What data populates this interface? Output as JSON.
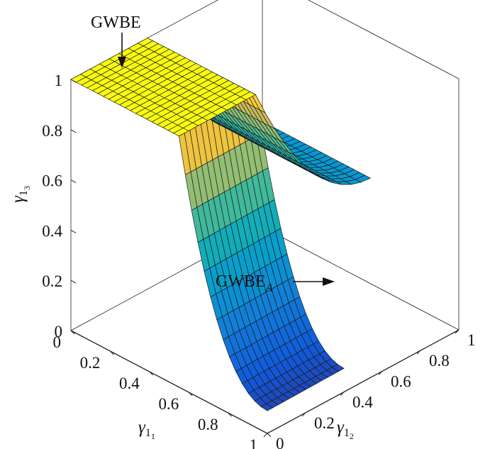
{
  "chart_data": {
    "type": "surface",
    "title": "",
    "annotations": {
      "upper": "GWBE",
      "lower_main": "GWBE",
      "lower_sub": "A"
    },
    "axes": {
      "x": {
        "symbol": "γ",
        "sub": "1",
        "subsub": "1",
        "range": [
          0,
          1
        ],
        "ticks": [
          0,
          0.2,
          0.4,
          0.6,
          0.8,
          1
        ],
        "tick_labels": [
          "0",
          "0.2",
          "0.4",
          "0.6",
          "0.8",
          "1"
        ]
      },
      "y": {
        "symbol": "γ",
        "sub": "1",
        "subsub": "2",
        "range": [
          0,
          1
        ],
        "ticks": [
          0,
          0.2,
          0.4,
          0.6,
          0.8,
          1
        ],
        "tick_labels": [
          "0",
          "0.2",
          "0.4",
          "0.6",
          "0.8",
          "1"
        ]
      },
      "z": {
        "symbol": "γ",
        "sub": "1",
        "subsub": "3",
        "range": [
          0,
          1
        ],
        "ticks": [
          0,
          0.2,
          0.4,
          0.6,
          0.8,
          1
        ],
        "tick_labels": [
          "0",
          "0.2",
          "0.4",
          "0.6",
          "0.8",
          "1"
        ]
      }
    },
    "series": [
      {
        "surface": "GWBE",
        "description_values": "plateau at 1 for gamma_1_2 <= 0.4, then decays to about 0.42 at gamma_1_2 = 1",
        "plateau_edge": 0.4,
        "end_value": 0.42
      },
      {
        "surface": "GWBE_A",
        "description_values": "plateau at 1 for gamma_1_1 <= 0.55, then decays toward 0.1 at gamma_1_1 = 1",
        "plateau_edge": 0.55,
        "end_value": 0.1
      }
    ],
    "colormap": "parula",
    "grid": false
  }
}
